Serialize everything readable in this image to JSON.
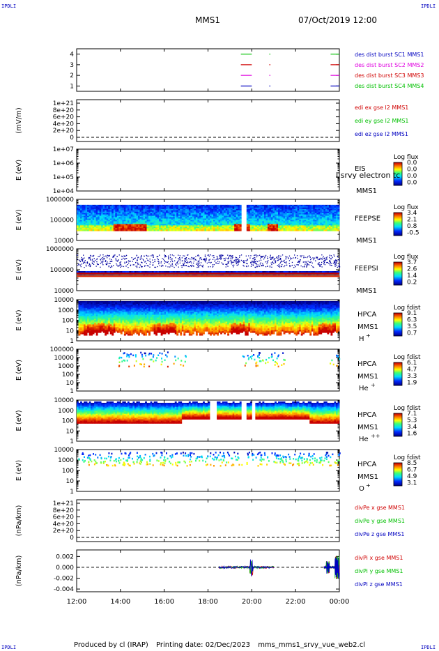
{
  "corner_label": "IPDLI",
  "header": {
    "spacecraft": "MMS1",
    "datetime": "07/Oct/2019 12:00"
  },
  "footer": {
    "produced_by": "Produced by cl (IRAP)",
    "printing_date": "Printing date: 02/Dec/2023",
    "script": "mms_mms1_srvy_vue_web2.cl"
  },
  "chart_data": [
    {
      "id": "burst",
      "type": "line",
      "ylim": [
        0.5,
        4.5
      ],
      "yticks": [
        "1",
        "2",
        "3",
        "4"
      ],
      "legend": [
        {
          "text": "des dist burst SC1 MMS1",
          "color": "#0000c0"
        },
        {
          "text": "des dist burst SC2 MMS2",
          "color": "#e000e0"
        },
        {
          "text": "des dist burst SC3 MMS3",
          "color": "#d00000"
        },
        {
          "text": "des dist burst SC4 MMS4",
          "color": "#00c000"
        }
      ],
      "intervals_hours": [
        [
          19.5,
          20.0
        ],
        [
          20.8,
          20.85
        ],
        [
          23.6,
          24.0
        ]
      ]
    },
    {
      "id": "edi",
      "type": "line",
      "ylabel": "(mV/m)",
      "yticks": [
        "0",
        "2e+20",
        "4e+20",
        "6e+20",
        "8e+20",
        "1e+21"
      ],
      "legend": [
        {
          "text": "edi ex gse l2 MMS1",
          "color": "#d00000"
        },
        {
          "text": "edi ey gse l2 MMS1",
          "color": "#00c000"
        },
        {
          "text": "edi ez gse l2 MMS1",
          "color": "#0000c0"
        }
      ]
    },
    {
      "id": "eis",
      "type": "heatmap",
      "ylabel": "E (eV)",
      "yticks": [
        "1e+04",
        "1e+05",
        "1e+06",
        "1e+07"
      ],
      "log_y": true,
      "labels": [
        "EIS",
        "MMS1"
      ],
      "overlay_text": "I srvy electron tc",
      "cb_title": "Log flux",
      "cb_ticks": [
        "0.0",
        "0.0",
        "0.0",
        "0.0"
      ]
    },
    {
      "id": "feepse",
      "type": "heatmap",
      "ylabel": "E (eV)",
      "yticks": [
        "10000",
        "100000",
        "1000000"
      ],
      "log_y": true,
      "labels": [
        "FEEPSE",
        "MMS1"
      ],
      "cb_title": "Log flux",
      "cb_ticks": [
        "3.4",
        "2.1",
        "0.8",
        "-0.5"
      ]
    },
    {
      "id": "feepsi",
      "type": "heatmap",
      "ylabel": "E (eV)",
      "yticks": [
        "10000",
        "100000",
        "1000000"
      ],
      "log_y": true,
      "labels": [
        "FEEPSI",
        "MMS1"
      ],
      "cb_title": "Log flux",
      "cb_ticks": [
        "3.7",
        "2.6",
        "1.4",
        "0.2"
      ]
    },
    {
      "id": "hpca_h",
      "type": "heatmap",
      "ylabel": "E (eV)",
      "yticks": [
        "1",
        "10",
        "100",
        "1000",
        "10000"
      ],
      "log_y": true,
      "labels": [
        "HPCA",
        "MMS1"
      ],
      "species": "H",
      "charge": "+",
      "cb_title": "Log fdist",
      "cb_ticks": [
        "9.1",
        "6.3",
        "3.5",
        "0.7"
      ]
    },
    {
      "id": "hpca_he",
      "type": "heatmap",
      "ylabel": "E (eV)",
      "yticks": [
        "1",
        "10",
        "100",
        "1000",
        "10000",
        "100000"
      ],
      "log_y": true,
      "labels": [
        "HPCA",
        "MMS1"
      ],
      "species": "He",
      "charge": "+",
      "cb_title": "Log fdist",
      "cb_ticks": [
        "6.1",
        "4.7",
        "3.3",
        "1.9"
      ]
    },
    {
      "id": "hpca_hepp",
      "type": "heatmap",
      "ylabel": "E (eV)",
      "yticks": [
        "1",
        "10",
        "100",
        "1000",
        "10000"
      ],
      "log_y": true,
      "labels": [
        "HPCA",
        "MMS1"
      ],
      "species": "He",
      "charge": "++",
      "cb_title": "Log fdist",
      "cb_ticks": [
        "7.1",
        "5.3",
        "3.4",
        "1.6"
      ]
    },
    {
      "id": "hpca_o",
      "type": "heatmap",
      "ylabel": "E (eV)",
      "yticks": [
        "1",
        "10",
        "100",
        "1000",
        "10000"
      ],
      "log_y": true,
      "labels": [
        "HPCA",
        "MMS1"
      ],
      "species": "O",
      "charge": "+",
      "cb_title": "Log fdist",
      "cb_ticks": [
        "8.5",
        "6.7",
        "4.9",
        "3.1"
      ]
    },
    {
      "id": "divpe",
      "type": "line",
      "ylabel": "(nPa/km)",
      "yticks": [
        "0",
        "2e+20",
        "4e+20",
        "6e+20",
        "8e+20",
        "1e+21"
      ],
      "legend": [
        {
          "text": "divPe x gse MMS1",
          "color": "#d00000"
        },
        {
          "text": "divPe y gse MMS1",
          "color": "#00c000"
        },
        {
          "text": "divPe z gse MMS1",
          "color": "#0000c0"
        }
      ]
    },
    {
      "id": "divpi",
      "type": "line",
      "ylabel": "(nPa/km)",
      "ylim": [
        -0.0045,
        0.0032
      ],
      "yticks": [
        "-0.004",
        "-0.002",
        "0.000",
        "0.002"
      ],
      "legend": [
        {
          "text": "divPi x gse MMS1",
          "color": "#d00000"
        },
        {
          "text": "divPi y gse MMS1",
          "color": "#00c000"
        },
        {
          "text": "divPi z gse MMS1",
          "color": "#0000c0"
        }
      ],
      "data_intervals_hours": [
        [
          18.5,
          21.0
        ],
        [
          23.3,
          24.0
        ]
      ]
    }
  ],
  "xaxis": {
    "ticks": [
      "12:00",
      "14:00",
      "16:00",
      "18:00",
      "20:00",
      "22:00",
      "00:00"
    ]
  }
}
